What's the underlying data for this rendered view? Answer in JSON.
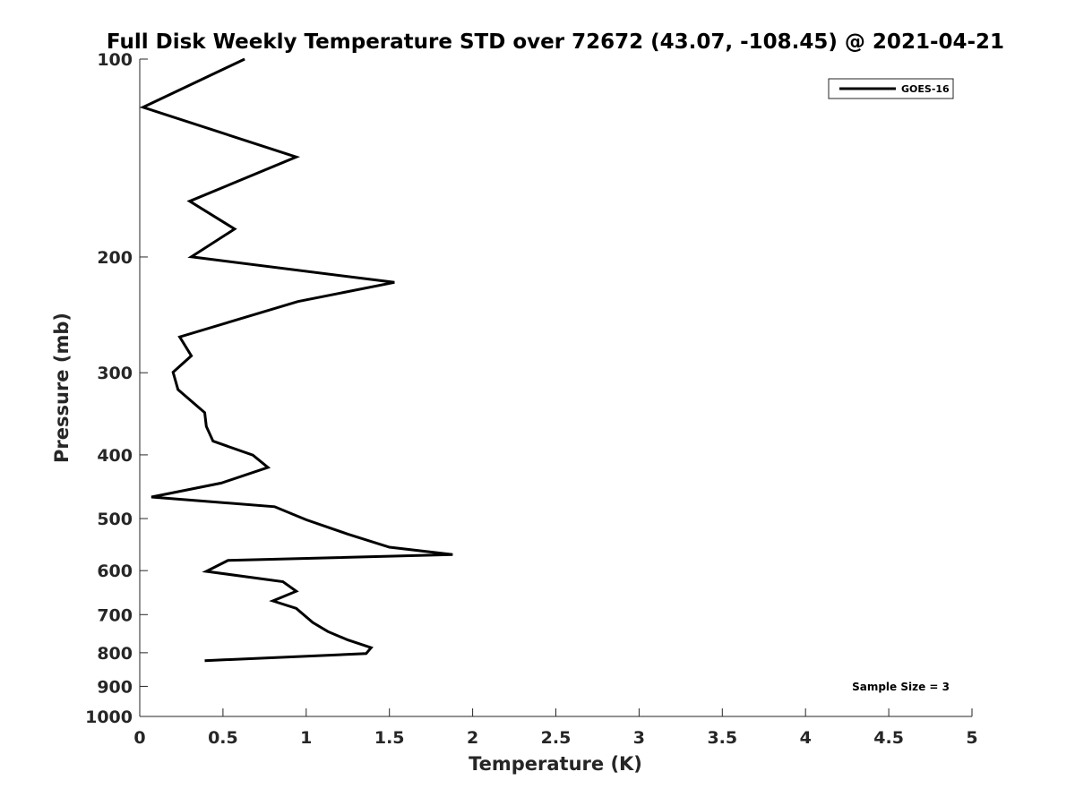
{
  "chart_data": {
    "type": "line",
    "title": "Full Disk Weekly Temperature STD over 72672 (43.07, -108.45) @ 2021-04-21",
    "xlabel": "Temperature (K)",
    "ylabel": "Pressure (mb)",
    "xlim": [
      0,
      5
    ],
    "ylim": [
      100,
      1000
    ],
    "y_scale": "log",
    "y_reversed": true,
    "x_ticks": [
      0,
      0.5,
      1,
      1.5,
      2,
      2.5,
      3,
      3.5,
      4,
      4.5,
      5
    ],
    "x_tick_labels": [
      "0",
      "0.5",
      "1",
      "1.5",
      "2",
      "2.5",
      "3",
      "3.5",
      "4",
      "4.5",
      "5"
    ],
    "y_ticks": [
      100,
      200,
      300,
      400,
      500,
      600,
      700,
      800,
      900,
      1000
    ],
    "y_tick_labels": [
      "100",
      "200",
      "300",
      "400",
      "500",
      "600",
      "700",
      "800",
      "900",
      "1000"
    ],
    "grid": false,
    "legend_position": "top-right",
    "annotation": "Sample Size = 3",
    "series": [
      {
        "name": "GOES-16",
        "color": "#000000",
        "points": [
          {
            "x": 0.63,
            "p": 100
          },
          {
            "x": 0.02,
            "p": 118.4
          },
          {
            "x": 0.94,
            "p": 140.9
          },
          {
            "x": 0.3,
            "p": 164.5
          },
          {
            "x": 0.57,
            "p": 181.3
          },
          {
            "x": 0.31,
            "p": 199.9
          },
          {
            "x": 1.53,
            "p": 218.6
          },
          {
            "x": 0.95,
            "p": 233.8
          },
          {
            "x": 0.24,
            "p": 264.6
          },
          {
            "x": 0.31,
            "p": 282.7
          },
          {
            "x": 0.2,
            "p": 299.4
          },
          {
            "x": 0.23,
            "p": 318.2
          },
          {
            "x": 0.39,
            "p": 344.9
          },
          {
            "x": 0.4,
            "p": 362.0
          },
          {
            "x": 0.44,
            "p": 381.2
          },
          {
            "x": 0.68,
            "p": 400.4
          },
          {
            "x": 0.77,
            "p": 418.0
          },
          {
            "x": 0.49,
            "p": 441.5
          },
          {
            "x": 0.07,
            "p": 463.7
          },
          {
            "x": 0.81,
            "p": 479.6
          },
          {
            "x": 1.0,
            "p": 502.1
          },
          {
            "x": 1.25,
            "p": 527.9
          },
          {
            "x": 1.5,
            "p": 552.8
          },
          {
            "x": 1.88,
            "p": 567.2
          },
          {
            "x": 0.53,
            "p": 578.9
          },
          {
            "x": 0.4,
            "p": 601.5
          },
          {
            "x": 0.86,
            "p": 623.6
          },
          {
            "x": 0.94,
            "p": 645.0
          },
          {
            "x": 0.8,
            "p": 667.2
          },
          {
            "x": 0.94,
            "p": 684.8
          },
          {
            "x": 1.04,
            "p": 719.9
          },
          {
            "x": 1.13,
            "p": 742.7
          },
          {
            "x": 1.25,
            "p": 765.1
          },
          {
            "x": 1.39,
            "p": 785.8
          },
          {
            "x": 1.36,
            "p": 802.4
          },
          {
            "x": 0.39,
            "p": 822.4
          }
        ]
      }
    ]
  }
}
